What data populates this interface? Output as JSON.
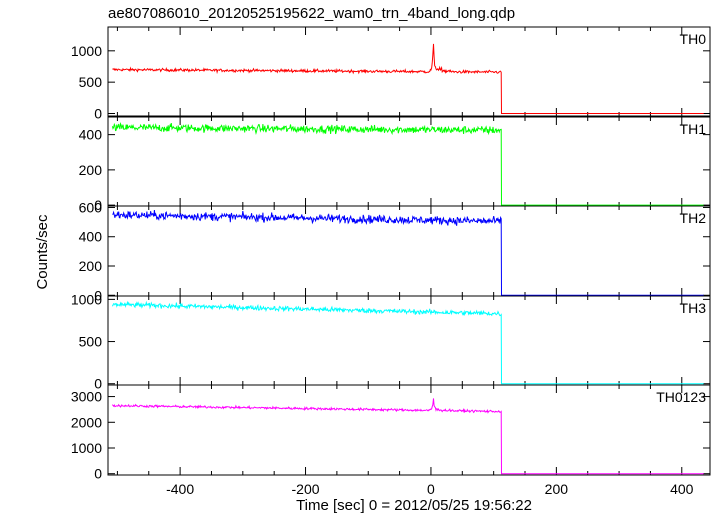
{
  "title": "ae807086010_20120525195622_wam0_trn_4band_long.qdp",
  "chart_data": {
    "type": "line",
    "title": "ae807086010_20120525195622_wam0_trn_4band_long.qdp",
    "xlabel": "Time [sec] 0 = 2012/05/25 19:56:22",
    "ylabel": "Counts/sec",
    "xlim": [
      -515,
      445
    ],
    "xticks": [
      -400,
      -200,
      0,
      200,
      400
    ],
    "drop_time": 112,
    "panels": [
      {
        "name": "TH0",
        "color": "#ff0000",
        "ylim": [
          -40,
          1380
        ],
        "yticks": [
          0,
          500,
          1000
        ],
        "pre_level_start": 700,
        "pre_level_end": 660,
        "noise": 22,
        "post_level": 0,
        "flare": {
          "peak_time": 4,
          "peak_value": 1330,
          "base_value": 800
        }
      },
      {
        "name": "TH1",
        "color": "#00ff00",
        "ylim": [
          -5,
          500
        ],
        "yticks": [
          0,
          200,
          400
        ],
        "pre_level_start": 440,
        "pre_level_end": 425,
        "noise": 22,
        "post_level": 0
      },
      {
        "name": "TH2",
        "color": "#0000ff",
        "ylim": [
          -5,
          610
        ],
        "yticks": [
          0,
          200,
          400,
          600
        ],
        "pre_level_start": 550,
        "pre_level_end": 505,
        "noise": 28,
        "post_level": 0
      },
      {
        "name": "TH3",
        "color": "#00ffff",
        "ylim": [
          -15,
          1040
        ],
        "yticks": [
          0,
          500,
          1000
        ],
        "pre_level_start": 940,
        "pre_level_end": 830,
        "noise": 28,
        "post_level": 0
      },
      {
        "name": "TH0123",
        "color": "#ff00ff",
        "ylim": [
          -50,
          3450
        ],
        "yticks": [
          0,
          1000,
          2000,
          3000
        ],
        "pre_level_start": 2650,
        "pre_level_end": 2420,
        "noise": 45,
        "post_level": 0,
        "flare": {
          "peak_time": 4,
          "peak_value": 3120,
          "base_value": 2550
        }
      }
    ]
  }
}
